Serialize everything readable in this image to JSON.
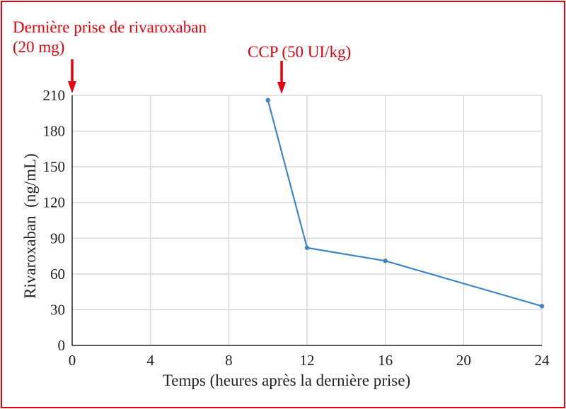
{
  "chart_data": {
    "type": "line",
    "xlabel": "Temps (heures après la dernière prise)",
    "ylabel": "Rivaroxaban  (ng/mL)",
    "xlim": [
      0,
      24
    ],
    "ylim": [
      0,
      210
    ],
    "xticks": [
      0,
      4,
      8,
      12,
      16,
      20,
      24
    ],
    "yticks": [
      0,
      30,
      60,
      90,
      120,
      150,
      180,
      210
    ],
    "grid": true,
    "series": [
      {
        "x": [
          10,
          12,
          16,
          24
        ],
        "y": [
          206,
          82,
          71,
          33
        ]
      }
    ],
    "annotations": [
      {
        "line1": "Dernière prise de rivaroxaban",
        "line2": "(20 mg)",
        "x": 0
      },
      {
        "line1": "CCP (50 UI/kg)",
        "x": 10.7
      }
    ],
    "colors": {
      "line": "#3f86c8",
      "annotation": "#e3000f",
      "grid": "#d9d9d9",
      "frame": "#e3000f"
    }
  }
}
